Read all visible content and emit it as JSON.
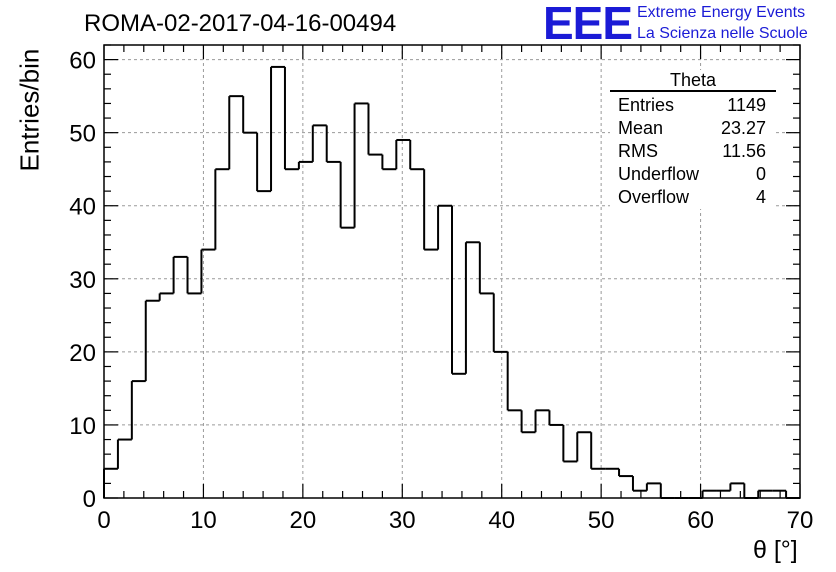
{
  "header": {
    "title": "ROMA-02-2017-04-16-00494",
    "logo_text": "EEE",
    "logo_line1": "Extreme Energy Events",
    "logo_line2": "La Scienza nelle Scuole"
  },
  "stats_box": {
    "name": "Theta",
    "rows": [
      {
        "label": "Entries",
        "value": "1149"
      },
      {
        "label": "Mean",
        "value": "23.27"
      },
      {
        "label": "RMS",
        "value": "11.56"
      },
      {
        "label": "Underflow",
        "value": "0"
      },
      {
        "label": "Overflow",
        "value": "4"
      }
    ]
  },
  "chart_data": {
    "type": "bar",
    "style": "step-histogram",
    "title": "ROMA-02-2017-04-16-00494",
    "xlabel": "θ [°]",
    "ylabel": "Entries/bin",
    "xlim": [
      0,
      70
    ],
    "ylim": [
      0,
      62
    ],
    "bin_width": 1.4,
    "bin_edges_start": 0,
    "x_ticks": [
      "0",
      "10",
      "20",
      "30",
      "40",
      "50",
      "60",
      "70"
    ],
    "y_ticks": [
      "0",
      "10",
      "20",
      "30",
      "40",
      "50",
      "60"
    ],
    "grid": true,
    "values": [
      4,
      8,
      16,
      27,
      28,
      33,
      28,
      34,
      45,
      55,
      50,
      42,
      59,
      45,
      46,
      51,
      46,
      37,
      54,
      47,
      45,
      49,
      45,
      34,
      40,
      17,
      35,
      28,
      20,
      12,
      9,
      12,
      10,
      5,
      9,
      4,
      4,
      3,
      1,
      2,
      0,
      0,
      0,
      1,
      1,
      2,
      0,
      1,
      1,
      0
    ],
    "colors": {
      "line": "#000000",
      "grid": "#9a9a9a",
      "logo": "#1b1bd6"
    }
  }
}
